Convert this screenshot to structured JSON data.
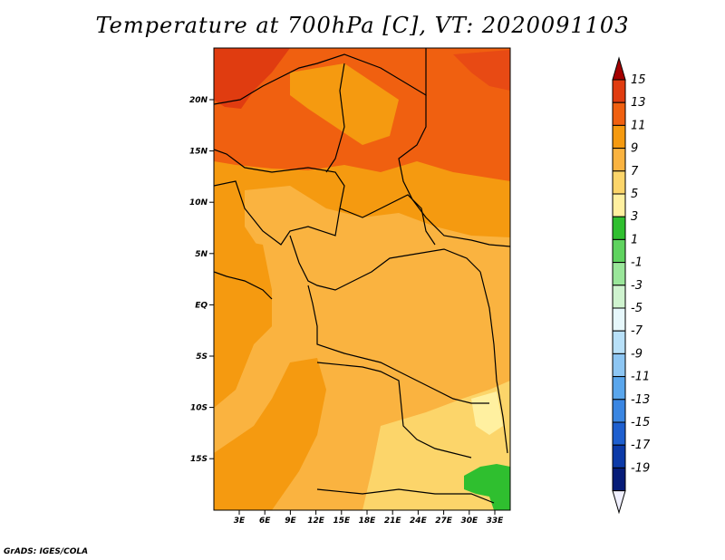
{
  "title": "Temperature at 700hPa [C], VT: 2020091103",
  "footer": "GrADS: IGES/COLA",
  "map": {
    "lat_ticks": [
      "20N",
      "15N",
      "10N",
      "5N",
      "EQ",
      "5S",
      "10S",
      "15S"
    ],
    "lon_ticks": [
      "3E",
      "6E",
      "9E",
      "12E",
      "15E",
      "18E",
      "21E",
      "24E",
      "27E",
      "30E",
      "33E"
    ]
  },
  "colorbar": {
    "labels": [
      "15",
      "13",
      "11",
      "9",
      "7",
      "5",
      "3",
      "1",
      "-1",
      "-3",
      "-5",
      "-7",
      "-9",
      "-11",
      "-13",
      "-15",
      "-17",
      "-19"
    ],
    "colors": [
      "#a50000",
      "#e03c10",
      "#f06010",
      "#f59a10",
      "#fab340",
      "#fcd56a",
      "#fff0a0",
      "#2fbf2f",
      "#5fd35f",
      "#9ae69a",
      "#cff3cf",
      "#e6f7fb",
      "#b8e0f8",
      "#8dc6f3",
      "#5aa6ec",
      "#3a86e2",
      "#1e5fcf",
      "#0c3aa8",
      "#061c78",
      "#f0f0ff"
    ]
  }
}
